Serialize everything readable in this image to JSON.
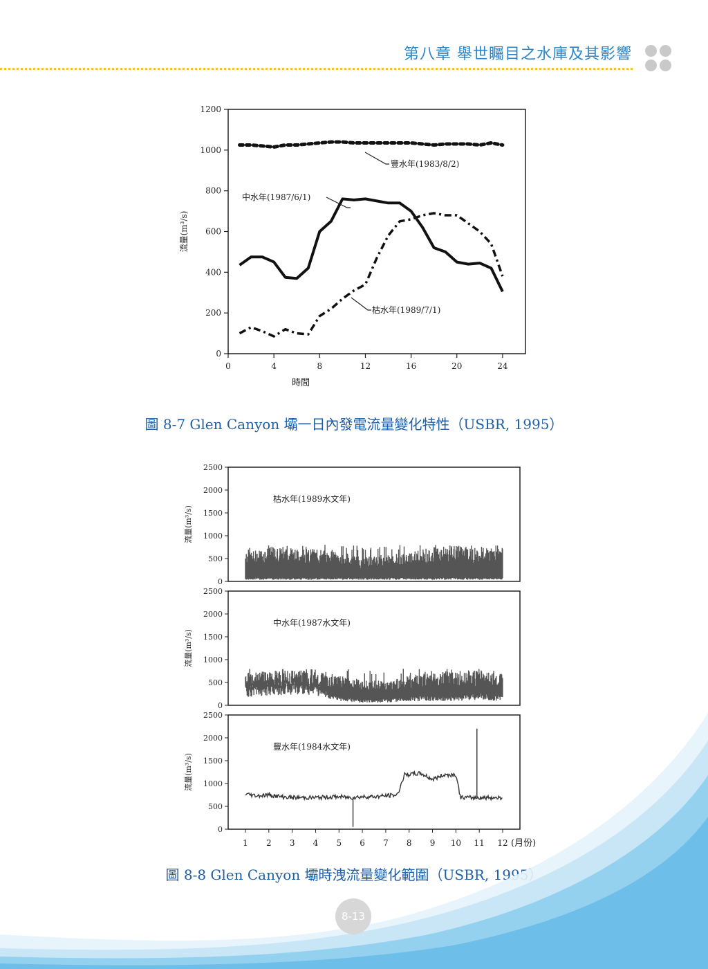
{
  "header": {
    "chapter_title": "第八章 舉世矚目之水庫及其影響",
    "accent_color": "#2a86c8",
    "rule_color": "#f0c23a",
    "decoration": "four-grey-dots-icon"
  },
  "figure1": {
    "caption": "圖 8-7  Glen Canyon 壩一日內發電流量變化特性（USBR, 1995）"
  },
  "figure2": {
    "caption": "圖 8-8  Glen Canyon 壩時洩流量變化範圍（USBR, 1995）"
  },
  "page": {
    "number": "8-13",
    "caption_color": "#1e5fa8"
  },
  "chart_data": [
    {
      "type": "line",
      "title": "",
      "xlabel": "時間",
      "ylabel": "流量(m³/s)",
      "xlim": [
        0,
        26
      ],
      "ylim": [
        0,
        1200
      ],
      "x_ticks": [
        0,
        4,
        8,
        12,
        16,
        20,
        24
      ],
      "y_ticks": [
        0,
        200,
        400,
        600,
        800,
        1000,
        1200
      ],
      "grid": false,
      "series": [
        {
          "name": "豐水年(1983/8/2)",
          "style": "dotted-thick",
          "x": [
            1,
            2,
            3,
            4,
            5,
            6,
            7,
            8,
            9,
            10,
            11,
            12,
            13,
            14,
            15,
            16,
            17,
            18,
            19,
            20,
            21,
            22,
            23,
            24
          ],
          "y": [
            1025,
            1025,
            1020,
            1015,
            1025,
            1025,
            1030,
            1035,
            1040,
            1040,
            1035,
            1035,
            1035,
            1035,
            1035,
            1035,
            1030,
            1025,
            1030,
            1030,
            1030,
            1025,
            1035,
            1025
          ]
        },
        {
          "name": "中水年(1987/6/1)",
          "style": "solid-thick",
          "x": [
            1,
            2,
            3,
            4,
            5,
            6,
            7,
            8,
            9,
            10,
            11,
            12,
            13,
            14,
            15,
            16,
            17,
            18,
            19,
            20,
            21,
            22,
            23,
            24
          ],
          "y": [
            435,
            475,
            475,
            450,
            375,
            370,
            420,
            600,
            650,
            760,
            755,
            760,
            750,
            740,
            740,
            700,
            620,
            520,
            500,
            450,
            440,
            445,
            420,
            305
          ]
        },
        {
          "name": "枯水年(1989/7/1)",
          "style": "dash-dot",
          "x": [
            1,
            2,
            3,
            4,
            5,
            6,
            7,
            8,
            9,
            10,
            11,
            12,
            13,
            14,
            15,
            16,
            17,
            18,
            19,
            20,
            21,
            22,
            23,
            24
          ],
          "y": [
            100,
            130,
            110,
            85,
            120,
            100,
            95,
            185,
            220,
            270,
            310,
            340,
            470,
            580,
            650,
            660,
            680,
            690,
            680,
            680,
            640,
            600,
            540,
            380
          ]
        }
      ]
    },
    {
      "type": "line",
      "title": "",
      "xlabel": "",
      "ylabel": "流量(m³/s)",
      "ylim": [
        0,
        2500
      ],
      "y_ticks": [
        0,
        500,
        1000,
        1500,
        2000,
        2500
      ],
      "x_tick_labels": [
        "1",
        "2",
        "3",
        "4",
        "5",
        "6",
        "7",
        "8",
        "9",
        "10",
        "11",
        "12"
      ],
      "x_unit_label": "(月份)",
      "grid": false,
      "panels": [
        {
          "name": "枯水年(1989水文年)",
          "style": "band",
          "months": [
            1,
            2,
            3,
            4,
            5,
            6,
            7,
            8,
            9,
            10,
            11,
            12
          ],
          "low": [
            60,
            60,
            60,
            60,
            60,
            60,
            60,
            60,
            60,
            60,
            60,
            60
          ],
          "high": [
            600,
            720,
            700,
            680,
            620,
            520,
            560,
            600,
            720,
            760,
            700,
            680
          ],
          "peak_max": 800
        },
        {
          "name": "中水年(1987水文年)",
          "style": "band",
          "months": [
            1,
            2,
            3,
            4,
            5,
            6,
            7,
            8,
            9,
            10,
            11,
            12
          ],
          "low": [
            300,
            350,
            380,
            350,
            150,
            100,
            100,
            150,
            150,
            150,
            200,
            150
          ],
          "high": [
            650,
            720,
            740,
            760,
            620,
            540,
            500,
            620,
            680,
            720,
            760,
            680
          ],
          "peak_max": 800
        },
        {
          "name": "豐水年(1984水文年)",
          "style": "line",
          "months": [
            1,
            1.5,
            2,
            2.5,
            3,
            4,
            5,
            5.5,
            6,
            6.5,
            7,
            7.5,
            7.8,
            8.5,
            9,
            9.5,
            10,
            10.2,
            10.5,
            11,
            11.5,
            12
          ],
          "values": [
            780,
            740,
            760,
            720,
            700,
            700,
            720,
            700,
            720,
            720,
            740,
            760,
            1200,
            1230,
            1100,
            1200,
            1200,
            700,
            700,
            700,
            700,
            700
          ],
          "spikes": [
            {
              "month": 5.6,
              "value": 50
            },
            {
              "month": 10.9,
              "value": 2200
            }
          ]
        }
      ]
    }
  ]
}
